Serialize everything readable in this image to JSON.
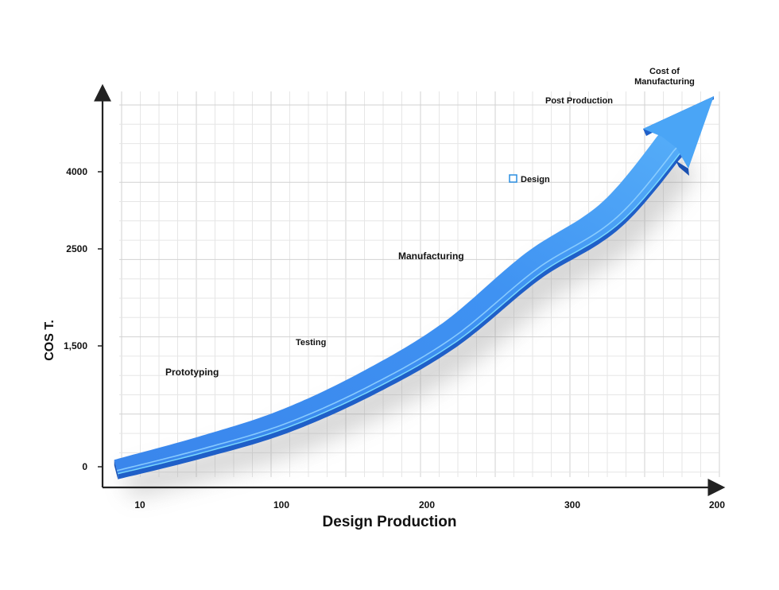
{
  "chart_data": {
    "type": "line",
    "xlabel": "Design Production",
    "ylabel": "COS T.",
    "x_tick_labels": [
      "10",
      "100",
      "200",
      "300",
      "200"
    ],
    "y_tick_labels": [
      "0",
      "1,500",
      "2500",
      "4000"
    ],
    "grid": true,
    "legend": "none",
    "series": [
      {
        "values": [
          {
            "x": 0,
            "y": 0
          },
          {
            "x": 50,
            "y": 270
          },
          {
            "x": 100,
            "y": 590
          },
          {
            "x": 150,
            "y": 1060
          },
          {
            "x": 200,
            "y": 1640
          },
          {
            "x": 250,
            "y": 2350
          },
          {
            "x": 300,
            "y": 3300
          },
          {
            "x": 350,
            "y": 4500
          }
        ]
      }
    ],
    "annotations": [
      {
        "id": "prototyping",
        "text": "Prototyping"
      },
      {
        "id": "testing",
        "text": "Testing"
      },
      {
        "id": "manufacturing",
        "text": "Manufacturing"
      },
      {
        "id": "design",
        "text": "Design"
      },
      {
        "id": "post-production",
        "text": "Post Production"
      },
      {
        "id": "cost-of-manufacturing",
        "lines": [
          "Cost of",
          "Manufacturing"
        ]
      }
    ],
    "colors": {
      "arrow_main": "#3d8ff0",
      "arrow_dark": "#1f5fc8",
      "arrow_highlight": "#8fd0ff",
      "axis": "#222222",
      "grid": "#d6d6d6"
    }
  }
}
